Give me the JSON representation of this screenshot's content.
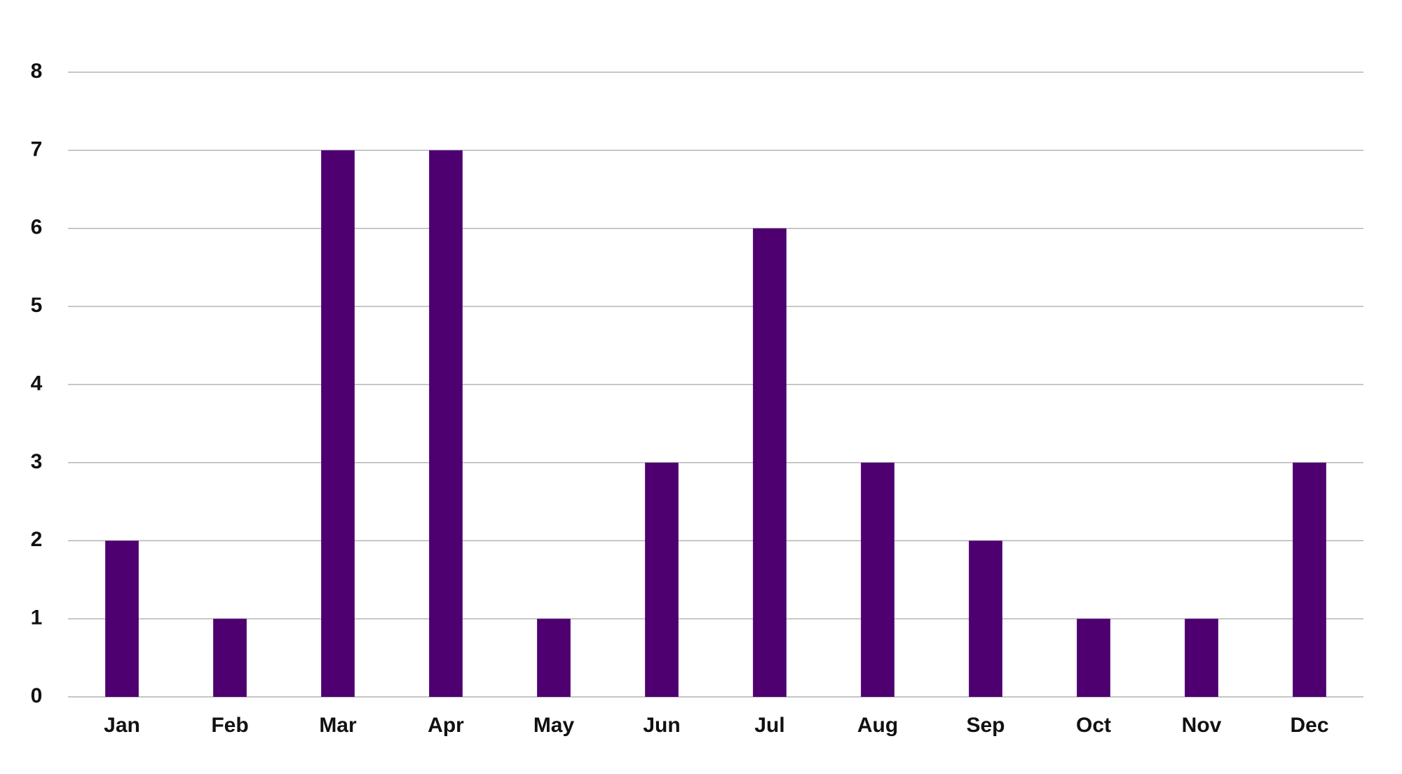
{
  "chart_data": {
    "type": "bar",
    "categories": [
      "Jan",
      "Feb",
      "Mar",
      "Apr",
      "May",
      "Jun",
      "Jul",
      "Aug",
      "Sep",
      "Oct",
      "Nov",
      "Dec"
    ],
    "values": [
      2,
      1,
      7,
      7,
      1,
      3,
      6,
      3,
      2,
      1,
      1,
      3
    ],
    "color": "#4e0070",
    "ylim": [
      0,
      8
    ],
    "yticks": [
      0,
      1,
      2,
      3,
      4,
      5,
      6,
      7,
      8
    ],
    "grid": true
  }
}
